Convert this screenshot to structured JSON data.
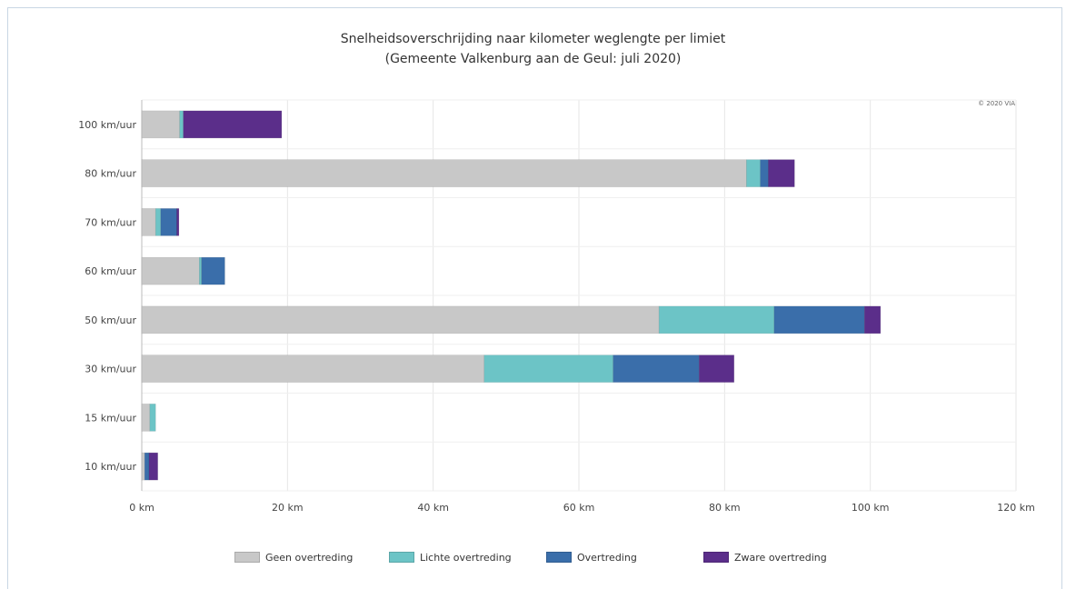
{
  "chart_data": {
    "type": "bar",
    "orientation": "horizontal",
    "stacked": true,
    "title": "Snelheidsoverschrijding naar kilometer weglengte per limiet",
    "subtitle": "(Gemeente Valkenburg aan de Geul: juli 2020)",
    "credit": "© 2020 VIA",
    "categories": [
      "100 km/uur",
      "80 km/uur",
      "70 km/uur",
      "60 km/uur",
      "50 km/uur",
      "30 km/uur",
      "15 km/uur",
      "10 km/uur"
    ],
    "series": [
      {
        "name": "Geen overtreding",
        "color": "#c8c8c8",
        "values": [
          5.2,
          83,
          1.9,
          7.9,
          71,
          47,
          1.1,
          0.4
        ]
      },
      {
        "name": "Lichte overtreding",
        "color": "#6cc4c6",
        "values": [
          0.5,
          1.9,
          0.7,
          0.3,
          15.8,
          17.7,
          0.8,
          0
        ]
      },
      {
        "name": "Overtreding",
        "color": "#3a6eaa",
        "values": [
          0,
          1.1,
          2.2,
          3.2,
          12.4,
          11.8,
          0,
          0.6
        ]
      },
      {
        "name": "Zware overtreding",
        "color": "#5b2e8a",
        "values": [
          13.5,
          3.6,
          0.3,
          0,
          2.2,
          4.8,
          0,
          1.2
        ]
      }
    ],
    "xlim": [
      0,
      120
    ],
    "xticks": [
      0,
      20,
      40,
      60,
      80,
      100,
      120
    ],
    "xtick_labels": [
      "0 km",
      "20 km",
      "40 km",
      "60 km",
      "80 km",
      "100 km",
      "120 km"
    ],
    "grid": true,
    "legend_position": "bottom"
  }
}
